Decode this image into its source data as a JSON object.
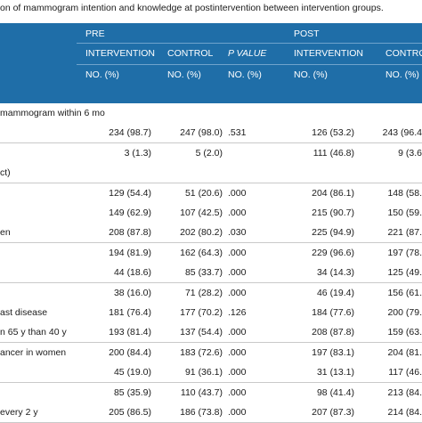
{
  "caption": "on of mammogram intention and knowledge at postintervention between intervention groups.",
  "header": {
    "group_pre": "PRE",
    "group_post": "POST",
    "col_intervention": "INTERVENTION",
    "col_control": "CONTROL",
    "col_pvalue": "P VALUE",
    "col_intervention_post": "INTERVENTION",
    "col_control_post": "CONTRO",
    "unit": "NO. (%)"
  },
  "rows": [
    {
      "label": "mammogram within 6 mo",
      "pre_int": "",
      "pre_ctl": "",
      "p": "",
      "post_int": "",
      "post_ctl": ""
    },
    {
      "label": "",
      "pre_int": "234 (98.7)",
      "pre_ctl": "247 (98.0)",
      "p": ".531",
      "post_int": "126 (53.2)",
      "post_ctl": "243 (96.4"
    },
    {
      "label": "",
      "pre_int": "3 (1.3)",
      "pre_ctl": "5 (2.0)",
      "p": "",
      "post_int": "111 (46.8)",
      "post_ctl": "9 (3.6"
    },
    {
      "label": "ct)",
      "pre_int": "",
      "pre_ctl": "",
      "p": "",
      "post_int": "",
      "post_ctl": ""
    },
    {
      "label": "",
      "pre_int": "129 (54.4)",
      "pre_ctl": "51 (20.6)",
      "p": ".000",
      "post_int": "204 (86.1)",
      "post_ctl": "148 (58."
    },
    {
      "label": "",
      "pre_int": "149 (62.9)",
      "pre_ctl": "107 (42.5)",
      "p": ".000",
      "post_int": "215 (90.7)",
      "post_ctl": "150 (59."
    },
    {
      "label": "en",
      "pre_int": "208 (87.8)",
      "pre_ctl": "202 (80.2)",
      "p": ".030",
      "post_int": "225 (94.9)",
      "post_ctl": "221 (87."
    },
    {
      "label": "",
      "pre_int": "194 (81.9)",
      "pre_ctl": "162 (64.3)",
      "p": ".000",
      "post_int": "229 (96.6)",
      "post_ctl": "197 (78."
    },
    {
      "label": "",
      "pre_int": "44 (18.6)",
      "pre_ctl": "85 (33.7)",
      "p": ".000",
      "post_int": "34 (14.3)",
      "post_ctl": "125 (49."
    },
    {
      "label": "",
      "pre_int": "38 (16.0)",
      "pre_ctl": "71 (28.2)",
      "p": ".000",
      "post_int": "46 (19.4)",
      "post_ctl": "156 (61."
    },
    {
      "label": "ast disease",
      "pre_int": "181 (76.4)",
      "pre_ctl": "177 (70.2)",
      "p": ".126",
      "post_int": "184 (77.6)",
      "post_ctl": "200 (79."
    },
    {
      "label": "n 65 y than 40 y",
      "pre_int": "193 (81.4)",
      "pre_ctl": "137 (54.4)",
      "p": ".000",
      "post_int": "208 (87.8)",
      "post_ctl": "159 (63."
    },
    {
      "label": "ancer in women",
      "pre_int": "200 (84.4)",
      "pre_ctl": "183 (72.6)",
      "p": ".000",
      "post_int": "197 (83.1)",
      "post_ctl": "204 (81."
    },
    {
      "label": "",
      "pre_int": "45 (19.0)",
      "pre_ctl": "91 (36.1)",
      "p": ".000",
      "post_int": "31 (13.1)",
      "post_ctl": "117 (46."
    },
    {
      "label": "",
      "pre_int": "85 (35.9)",
      "pre_ctl": "110 (43.7)",
      "p": ".000",
      "post_int": "98 (41.4)",
      "post_ctl": "213 (84."
    },
    {
      "label": "every 2 y",
      "pre_int": "205 (86.5)",
      "pre_ctl": "186 (73.8)",
      "p": ".000",
      "post_int": "207 (87.3)",
      "post_ctl": "214 (84."
    }
  ]
}
